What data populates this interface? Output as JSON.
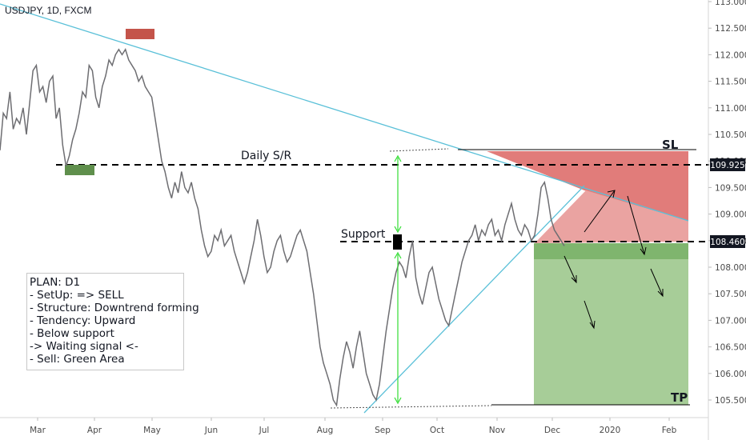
{
  "header": {
    "symbol": "USDJPY, 1D, FXCM"
  },
  "plan_box": {
    "lines": [
      "PLAN: D1",
      "- SetUp: => SELL",
      "- Structure: Downtrend forming",
      "- Tendency: Upward",
      "- Below support",
      "-> Waiting signal <-",
      "- Sell: Green Area"
    ]
  },
  "annotations": {
    "sr_label": "Daily S/R",
    "support_label": "Support",
    "sl_label": "SL",
    "tp_label": "TP"
  },
  "colors": {
    "price_line": "#6e6e72",
    "trendline": "#5ac0d8",
    "red_zone": "#e17c7a",
    "red_zone_light": "#eaa3a1",
    "green_zone": "#7fb56e",
    "green_zone_light": "#a7cd98",
    "green_box": "#5f8f4c",
    "red_box": "#c4544a",
    "arrow_green": "#33dd33",
    "axis_text": "#4a4a4a",
    "badge_bg": "#131722",
    "badge_text": "#ffffff"
  },
  "chart_data": {
    "type": "line",
    "symbol": "USDJPY",
    "timeframe": "1D",
    "x_ticks": [
      "Mar",
      "Apr",
      "May",
      "Jun",
      "Jul",
      "Aug",
      "Sep",
      "Oct",
      "Nov",
      "Dec",
      "2020",
      "Feb"
    ],
    "y_ticks": [
      "113.000",
      "112.500",
      "112.000",
      "111.500",
      "111.000",
      "110.500",
      "110.000",
      "109.500",
      "109.000",
      "108.500",
      "108.000",
      "107.500",
      "107.000",
      "106.500",
      "106.000",
      "105.500"
    ],
    "ylim": [
      105.2,
      113.0
    ],
    "price_labels": [
      "109.925",
      "108.460"
    ],
    "levels": {
      "daily_sr": 109.925,
      "support": 108.46,
      "stop_loss": 110.18,
      "take_profit": 105.4
    },
    "price_series": [
      110.2,
      110.9,
      110.8,
      111.3,
      110.6,
      110.8,
      110.7,
      111.0,
      110.5,
      111.1,
      111.7,
      111.8,
      111.3,
      111.4,
      111.1,
      111.5,
      111.6,
      110.8,
      111.0,
      110.3,
      109.9,
      110.1,
      110.4,
      110.6,
      110.9,
      111.3,
      111.2,
      111.8,
      111.7,
      111.2,
      111.0,
      111.4,
      111.6,
      111.9,
      111.8,
      112.0,
      112.1,
      112.0,
      112.1,
      111.9,
      111.8,
      111.7,
      111.5,
      111.6,
      111.4,
      111.3,
      111.2,
      110.8,
      110.4,
      110.0,
      109.8,
      109.5,
      109.3,
      109.6,
      109.4,
      109.8,
      109.5,
      109.4,
      109.6,
      109.3,
      109.1,
      108.7,
      108.4,
      108.2,
      108.3,
      108.6,
      108.5,
      108.7,
      108.4,
      108.5,
      108.6,
      108.3,
      108.1,
      107.9,
      107.7,
      107.9,
      108.2,
      108.5,
      108.9,
      108.6,
      108.2,
      107.9,
      108.0,
      108.3,
      108.5,
      108.6,
      108.3,
      108.1,
      108.2,
      108.4,
      108.6,
      108.7,
      108.5,
      108.3,
      107.9,
      107.5,
      107.0,
      106.5,
      106.2,
      106.0,
      105.8,
      105.5,
      105.4,
      105.9,
      106.3,
      106.6,
      106.4,
      106.1,
      106.5,
      106.8,
      106.4,
      106.0,
      105.8,
      105.6,
      105.5,
      105.8,
      106.3,
      106.8,
      107.2,
      107.6,
      107.9,
      108.1,
      108.0,
      107.8,
      108.2,
      108.5,
      107.8,
      107.5,
      107.3,
      107.6,
      107.9,
      108.0,
      107.7,
      107.4,
      107.2,
      107.0,
      106.9,
      107.2,
      107.5,
      107.8,
      108.1,
      108.3,
      108.5,
      108.6,
      108.8,
      108.5,
      108.7,
      108.6,
      108.8,
      108.9,
      108.6,
      108.7,
      108.5,
      108.8,
      109.0,
      109.2,
      108.9,
      108.7,
      108.6,
      108.8,
      108.7,
      108.5,
      108.6,
      109.0,
      109.5,
      109.6,
      109.3,
      108.9,
      108.7,
      108.6,
      108.5,
      108.4
    ]
  }
}
